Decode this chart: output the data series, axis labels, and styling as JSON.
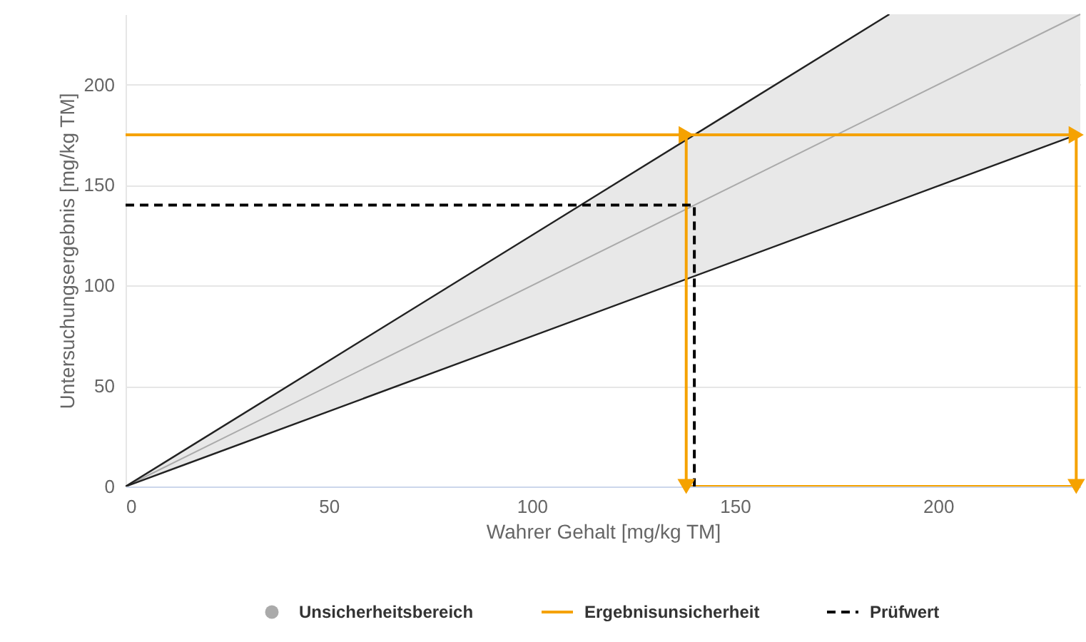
{
  "chart_data": {
    "type": "line",
    "xlabel": "Wahrer Gehalt [mg/kg TM]",
    "ylabel": "Untersuchungsergebnis [mg/kg TM]",
    "xlim": [
      0,
      235
    ],
    "ylim": [
      0,
      235
    ],
    "xticks": [
      0,
      50,
      100,
      150,
      200
    ],
    "yticks": [
      0,
      50,
      100,
      150,
      200
    ],
    "grid": "y",
    "legend": "bottom",
    "series": [
      {
        "name": "Unsicherheitsbereich",
        "color": "#aaaaaa",
        "x": [
          0,
          188,
          235
        ],
        "values": [
          0,
          188,
          235
        ],
        "lower": [
          0,
          141,
          176
        ],
        "upper": [
          0,
          235,
          235
        ]
      },
      {
        "color": "#222222",
        "x": [
          0,
          188
        ],
        "values": [
          0,
          235
        ]
      },
      {
        "color": "#222222",
        "x": [
          0,
          234
        ],
        "values": [
          0,
          175
        ]
      },
      {
        "name": "Ergebnisunsicherheit",
        "color": "#f5a200",
        "x": [
          0,
          138
        ],
        "values": [
          175,
          175
        ]
      },
      {
        "color": "#f5a200",
        "x": [
          138,
          234
        ],
        "values": [
          175,
          175
        ]
      },
      {
        "color": "#f5a200",
        "x": [
          138,
          138
        ],
        "values": [
          175,
          0
        ]
      },
      {
        "color": "#f5a200",
        "x": [
          234,
          234
        ],
        "values": [
          175,
          0
        ]
      },
      {
        "color": "#f5a200",
        "x": [
          138,
          234
        ],
        "values": [
          0,
          0
        ]
      },
      {
        "name": "Prüfwert",
        "color": "#000000",
        "line_style": "dashed",
        "x": [
          0,
          140,
          140
        ],
        "values": [
          140,
          140,
          0
        ]
      }
    ]
  }
}
